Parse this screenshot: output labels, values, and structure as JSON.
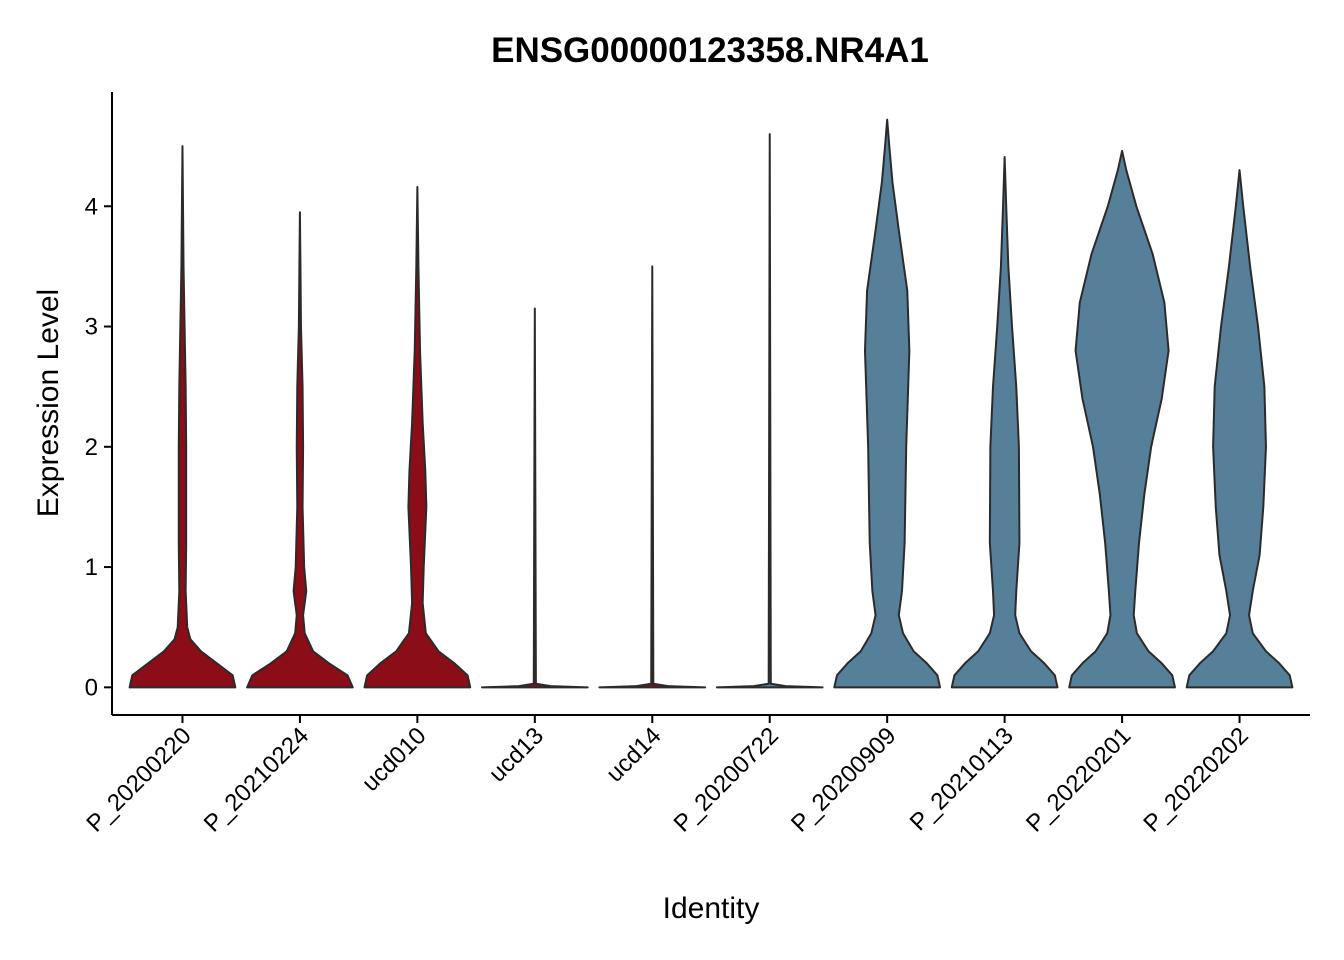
{
  "chart_data": {
    "type": "violin",
    "title": "ENSG00000123358.NR4A1",
    "xlabel": "Identity",
    "ylabel": "Expression Level",
    "categories": [
      "P_20200220",
      "P_20210224",
      "ucd010",
      "ucd13",
      "ucd14",
      "P_20200722",
      "P_20200909",
      "P_20210113",
      "P_20220201",
      "P_20220202"
    ],
    "ylim": [
      -0.23,
      4.95
    ],
    "yticks": [
      0,
      1,
      2,
      3,
      4
    ],
    "violins": [
      {
        "color": "#8b0d17",
        "y": [
          0,
          0.1,
          0.2,
          0.3,
          0.4,
          0.5,
          0.8,
          1.2,
          2,
          2.5,
          3,
          3.5,
          4,
          4.5
        ],
        "width": [
          1,
          0.95,
          0.65,
          0.35,
          0.15,
          0.09,
          0.06,
          0.07,
          0.07,
          0.06,
          0.04,
          0.02,
          0.01,
          0
        ]
      },
      {
        "color": "#8b0d17",
        "y": [
          0,
          0.1,
          0.2,
          0.3,
          0.45,
          0.6,
          0.8,
          1.0,
          1.5,
          2,
          2.5,
          3,
          3.5,
          3.95
        ],
        "width": [
          1,
          0.9,
          0.55,
          0.25,
          0.09,
          0.06,
          0.12,
          0.08,
          0.05,
          0.06,
          0.05,
          0.02,
          0.01,
          0
        ]
      },
      {
        "color": "#8b0d17",
        "y": [
          0,
          0.1,
          0.2,
          0.3,
          0.45,
          0.7,
          1.0,
          1.5,
          1.8,
          2.2,
          2.8,
          3.5,
          4.16
        ],
        "width": [
          1,
          0.95,
          0.7,
          0.4,
          0.16,
          0.1,
          0.12,
          0.17,
          0.15,
          0.1,
          0.05,
          0.02,
          0
        ]
      },
      {
        "color": "#8b0d17",
        "y": [
          0,
          0.01,
          0.03,
          3.15
        ],
        "width": [
          1,
          0.3,
          0.02,
          0
        ]
      },
      {
        "color": "#8b0d17",
        "y": [
          0,
          0.01,
          0.03,
          3.5
        ],
        "width": [
          1,
          0.3,
          0.02,
          0
        ]
      },
      {
        "color": "#56809a",
        "y": [
          0,
          0.01,
          0.03,
          4.6
        ],
        "width": [
          1,
          0.3,
          0.02,
          0
        ]
      },
      {
        "color": "#56809a",
        "y": [
          0,
          0.1,
          0.2,
          0.3,
          0.45,
          0.6,
          0.8,
          1.2,
          2,
          2.8,
          3.3,
          3.8,
          4.2,
          4.5,
          4.72
        ],
        "width": [
          1,
          0.95,
          0.75,
          0.5,
          0.3,
          0.22,
          0.28,
          0.33,
          0.36,
          0.42,
          0.38,
          0.22,
          0.1,
          0.04,
          0
        ]
      },
      {
        "color": "#56809a",
        "y": [
          0,
          0.1,
          0.2,
          0.3,
          0.45,
          0.6,
          0.8,
          1.2,
          2,
          2.5,
          3,
          3.5,
          4,
          4.41
        ],
        "width": [
          1,
          0.95,
          0.75,
          0.5,
          0.28,
          0.2,
          0.22,
          0.28,
          0.27,
          0.22,
          0.14,
          0.07,
          0.03,
          0
        ]
      },
      {
        "color": "#56809a",
        "y": [
          0,
          0.1,
          0.2,
          0.3,
          0.45,
          0.6,
          0.8,
          1.2,
          1.6,
          2,
          2.4,
          2.8,
          3.2,
          3.6,
          4,
          4.3,
          4.46
        ],
        "width": [
          1,
          0.95,
          0.75,
          0.5,
          0.28,
          0.22,
          0.25,
          0.32,
          0.42,
          0.55,
          0.75,
          0.88,
          0.8,
          0.58,
          0.27,
          0.08,
          0
        ]
      },
      {
        "color": "#56809a",
        "y": [
          0,
          0.1,
          0.2,
          0.3,
          0.45,
          0.6,
          0.8,
          1.1,
          1.5,
          2,
          2.5,
          3,
          3.5,
          4,
          4.3
        ],
        "width": [
          1,
          0.95,
          0.75,
          0.5,
          0.25,
          0.18,
          0.25,
          0.38,
          0.45,
          0.5,
          0.47,
          0.35,
          0.2,
          0.07,
          0
        ]
      }
    ]
  }
}
